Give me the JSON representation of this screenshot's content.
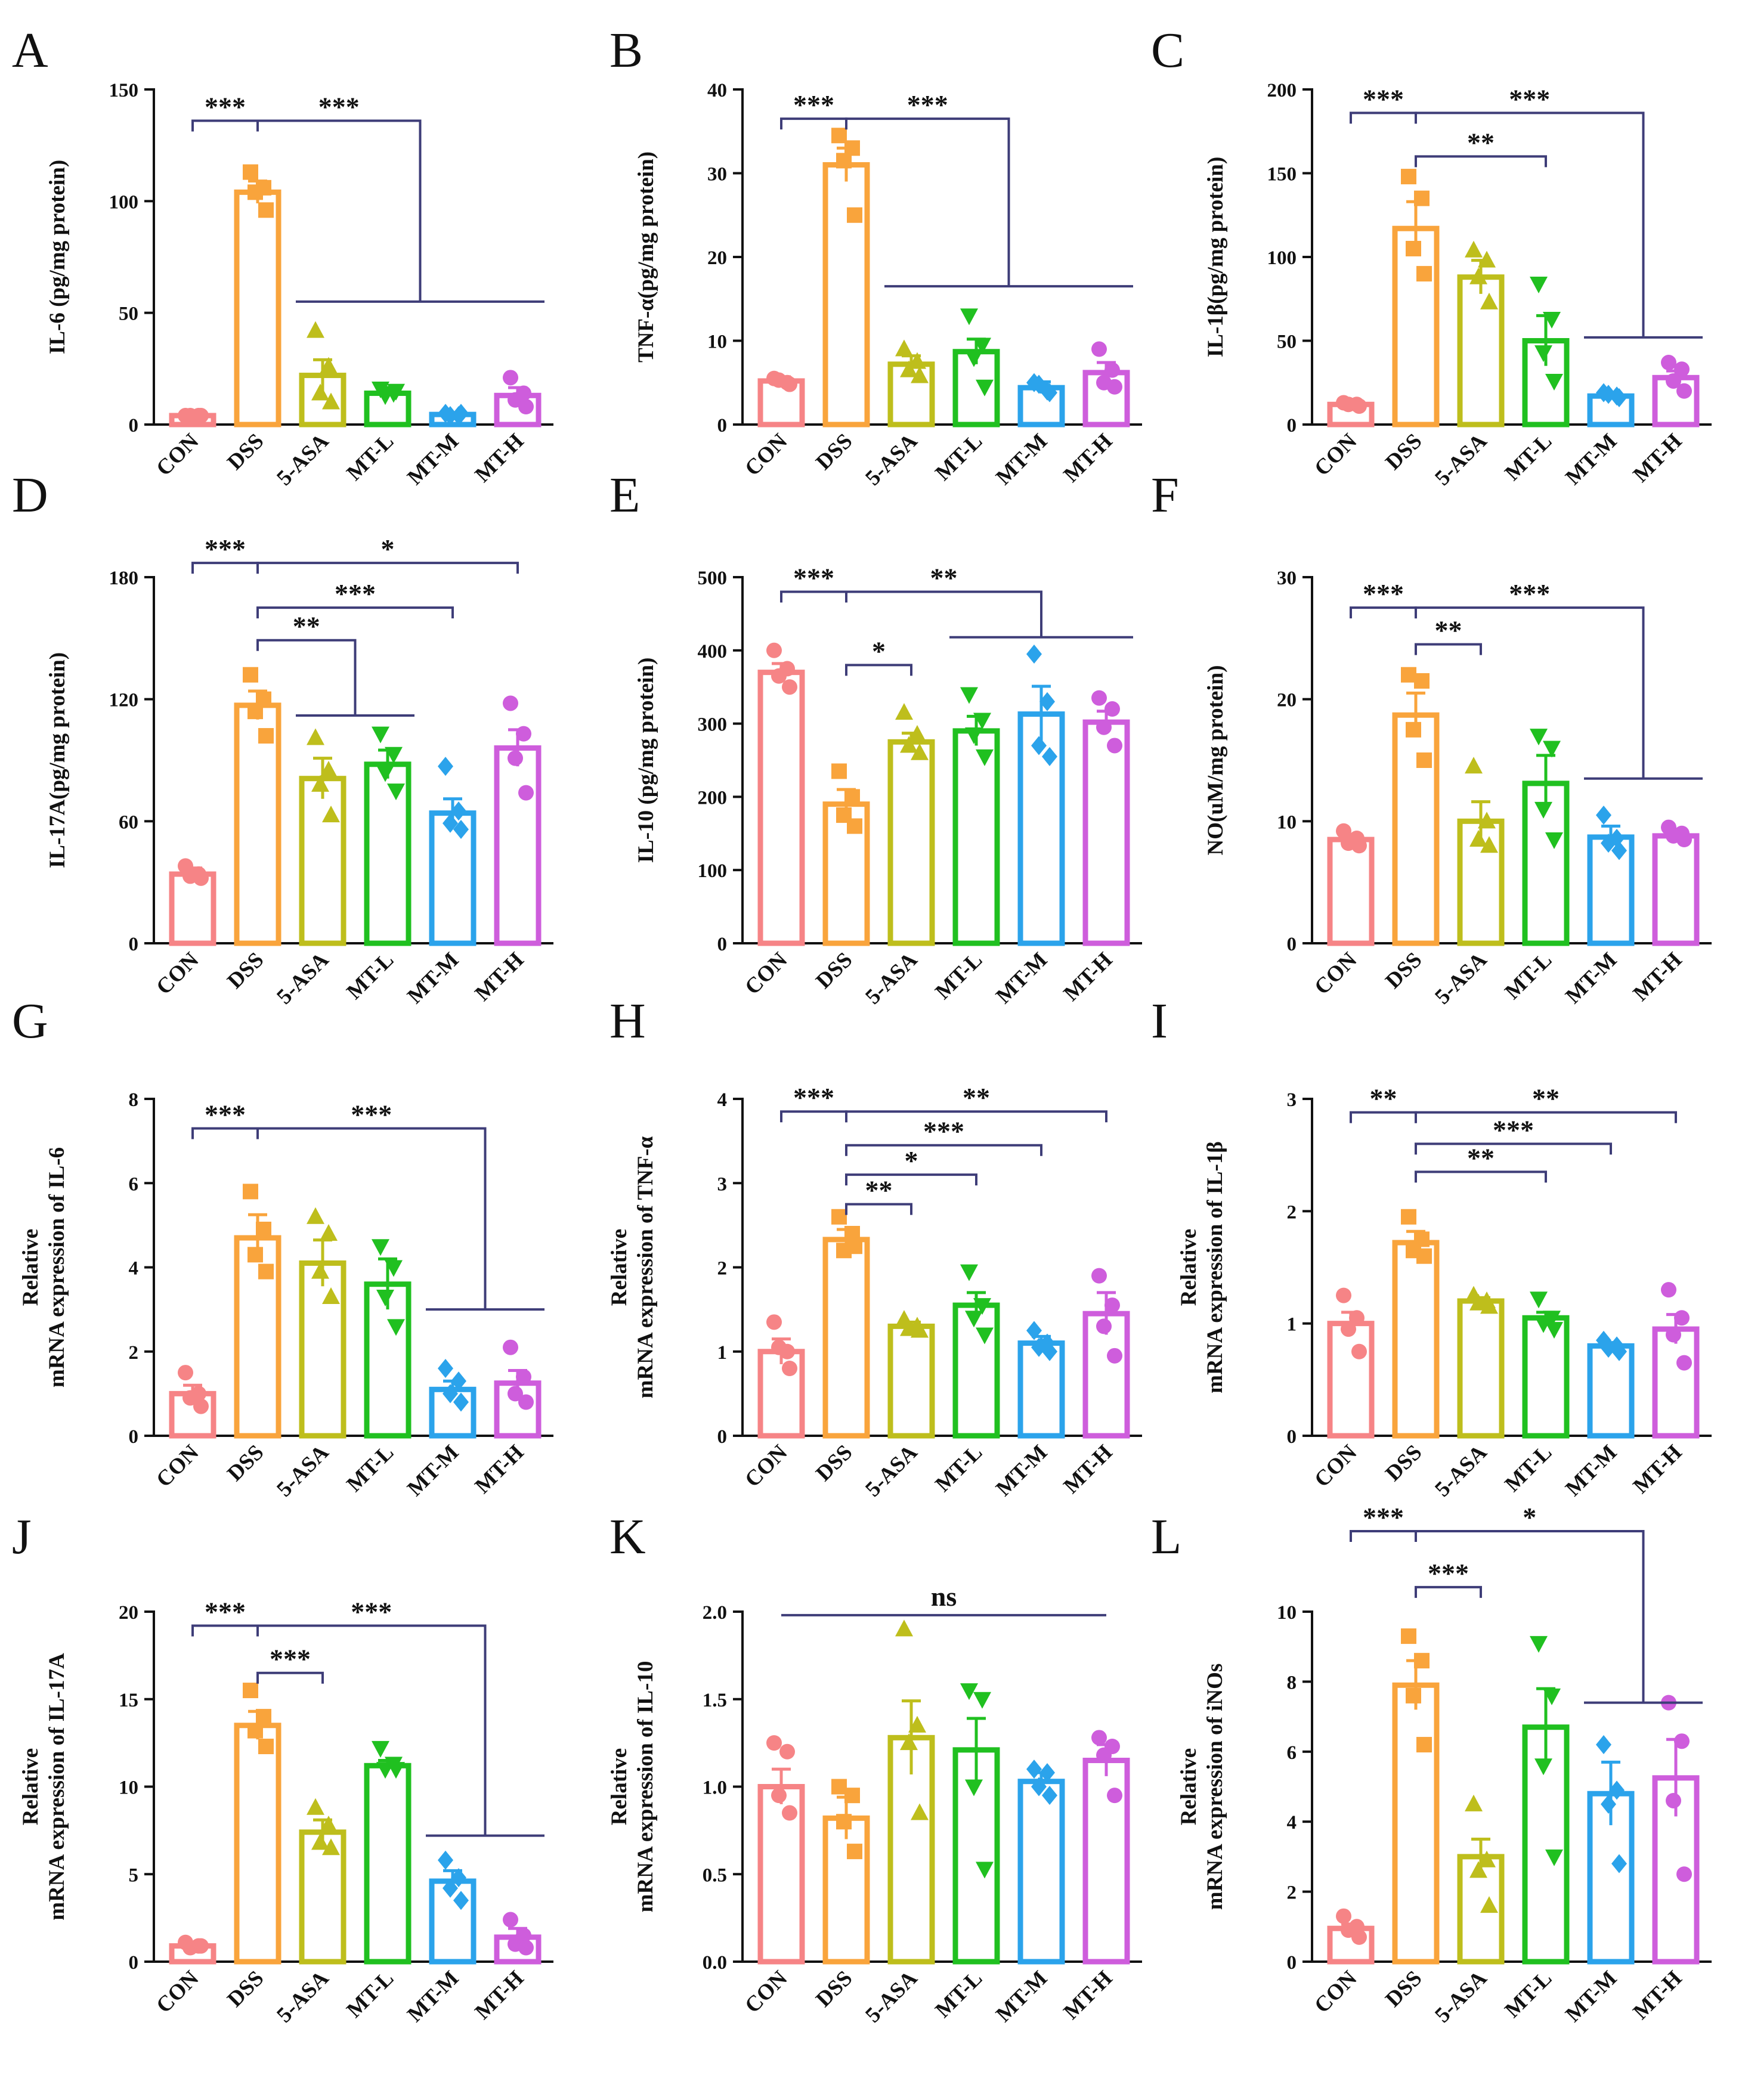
{
  "figure": {
    "categories": [
      "CON",
      "DSS",
      "5-ASA",
      "MT-L",
      "MT-M",
      "MT-H"
    ],
    "group_colors": {
      "CON": "#F68486",
      "DSS": "#F9A43C",
      "5-ASA": "#BEBE1C",
      "MT-L": "#20C020",
      "MT-M": "#2BA3EB",
      "MT-H": "#CE5DDC"
    },
    "marker_shapes": [
      "circle",
      "square",
      "triangle-up",
      "triangle-down",
      "diamond",
      "circle"
    ],
    "axis_color": "#111111",
    "bracket_color": "#3E3D78"
  },
  "chart_data": [
    {
      "panel": "A",
      "type": "bar",
      "title": "",
      "ylabel": [
        "IL-6 (pg/mg protein)"
      ],
      "ylim": [
        0,
        150
      ],
      "yticks": [
        0,
        50,
        100,
        150
      ],
      "values": [
        4,
        104,
        22,
        14,
        4.5,
        13
      ],
      "sem": [
        0,
        5,
        7,
        2,
        0.5,
        3.5
      ],
      "points": [
        [
          4,
          4,
          4,
          4
        ],
        [
          113,
          106,
          104,
          96
        ],
        [
          42,
          26,
          14,
          10
        ],
        [
          16,
          14,
          13,
          15
        ],
        [
          5,
          4,
          4,
          5
        ],
        [
          21,
          14,
          11,
          8
        ]
      ],
      "comparisons": [
        {
          "label": "***",
          "from": 0,
          "to": [
            1
          ],
          "y": 136
        },
        {
          "label": "***",
          "from": 1,
          "to": [
            2,
            3,
            4,
            5
          ],
          "y": 136,
          "group_y": 55
        }
      ]
    },
    {
      "panel": "B",
      "type": "bar",
      "title": "",
      "ylabel": [
        "TNF-α(pg/mg protein)"
      ],
      "ylim": [
        0,
        40
      ],
      "yticks": [
        0,
        10,
        20,
        30,
        40
      ],
      "values": [
        5.2,
        31,
        7.2,
        8.7,
        4.4,
        6.2
      ],
      "sem": [
        0.5,
        2,
        1,
        1.5,
        0.7,
        1.2
      ],
      "points": [
        [
          5.5,
          5,
          5.3,
          4.8
        ],
        [
          34.5,
          33,
          31.5,
          25
        ],
        [
          9,
          7.5,
          6.5,
          5.8
        ],
        [
          13,
          9.5,
          8,
          4.5
        ],
        [
          5,
          4,
          4.8,
          3.8
        ],
        [
          9,
          6.5,
          5,
          4.5
        ]
      ],
      "comparisons": [
        {
          "label": "***",
          "from": 0,
          "to": [
            1
          ],
          "y": 36.5
        },
        {
          "label": "***",
          "from": 1,
          "to": [
            2,
            3,
            4,
            5
          ],
          "y": 36.5,
          "group_y": 16.5
        }
      ]
    },
    {
      "panel": "C",
      "type": "bar",
      "title": "",
      "ylabel": [
        "IL-1β(pg/mg protein)"
      ],
      "ylim": [
        0,
        200
      ],
      "yticks": [
        0,
        50,
        100,
        150,
        200
      ],
      "values": [
        12,
        117,
        88,
        50,
        17,
        28
      ],
      "sem": [
        1,
        16,
        10,
        15,
        1.5,
        4
      ],
      "points": [
        [
          13,
          12,
          12,
          11
        ],
        [
          148,
          135,
          105,
          90
        ],
        [
          104,
          98,
          88,
          73
        ],
        [
          84,
          63,
          43,
          26
        ],
        [
          19,
          17,
          18,
          16
        ],
        [
          37,
          33,
          26,
          20
        ]
      ],
      "comparisons": [
        {
          "label": "***",
          "from": 0,
          "to": [
            1
          ],
          "y": 186
        },
        {
          "label": "**",
          "from": 1,
          "to": [
            3
          ],
          "y": 160
        },
        {
          "label": "***",
          "from": 1,
          "to": [
            4,
            5
          ],
          "y": 186,
          "group_y": 52
        }
      ]
    },
    {
      "panel": "D",
      "type": "bar",
      "title": "",
      "ylabel": [
        "IL-17A(pg/mg protein)"
      ],
      "ylim": [
        0,
        180
      ],
      "yticks": [
        0,
        60,
        120,
        180
      ],
      "values": [
        34,
        117,
        81,
        88,
        64,
        96
      ],
      "sem": [
        3,
        7,
        10,
        7,
        7,
        9
      ],
      "points": [
        [
          38,
          34,
          33,
          32
        ],
        [
          132,
          120,
          114,
          102
        ],
        [
          101,
          85,
          78,
          63
        ],
        [
          103,
          93,
          84,
          75
        ],
        [
          87,
          65,
          59,
          56
        ],
        [
          118,
          103,
          91,
          74
        ]
      ],
      "comparisons": [
        {
          "label": "***",
          "from": 0,
          "to": [
            1
          ],
          "y": 187
        },
        {
          "label": "*",
          "from": 1,
          "to": [
            5
          ],
          "y": 187
        },
        {
          "label": "***",
          "from": 1,
          "to": [
            4
          ],
          "y": 165
        },
        {
          "label": "**",
          "from": 1,
          "to": [
            2,
            3
          ],
          "y": 149,
          "group_y": 112
        }
      ]
    },
    {
      "panel": "E",
      "type": "bar",
      "title": "",
      "ylabel": [
        "IL-10 (pg/mg protein)"
      ],
      "ylim": [
        0,
        500
      ],
      "yticks": [
        0,
        100,
        200,
        300,
        400,
        500
      ],
      "values": [
        370,
        190,
        275,
        290,
        313,
        302
      ],
      "sem": [
        12,
        20,
        12,
        20,
        38,
        15
      ],
      "points": [
        [
          400,
          375,
          365,
          350
        ],
        [
          235,
          200,
          175,
          160
        ],
        [
          315,
          285,
          270,
          260
        ],
        [
          340,
          305,
          285,
          255
        ],
        [
          395,
          330,
          270,
          255
        ],
        [
          335,
          320,
          295,
          270
        ]
      ],
      "comparisons": [
        {
          "label": "***",
          "from": 0,
          "to": [
            1
          ],
          "y": 480
        },
        {
          "label": "*",
          "from": 1,
          "to": [
            2
          ],
          "y": 380
        },
        {
          "label": "**",
          "from": 1,
          "to": [
            3,
            4,
            5
          ],
          "y": 480,
          "group_y": 418
        }
      ]
    },
    {
      "panel": "F",
      "type": "bar",
      "title": "",
      "ylabel": [
        "NO(uM/mg protein)"
      ],
      "ylim": [
        0,
        30
      ],
      "yticks": [
        0,
        10,
        20,
        30
      ],
      "values": [
        8.5,
        18.7,
        10,
        13.1,
        8.7,
        8.8
      ],
      "sem": [
        0.3,
        1.8,
        1.6,
        2.3,
        0.9,
        0.5
      ],
      "points": [
        [
          9.2,
          8.6,
          8.2,
          8
        ],
        [
          22,
          21.5,
          17.5,
          15
        ],
        [
          14.5,
          10,
          8.5,
          8
        ],
        [
          17,
          16,
          11,
          8.5
        ],
        [
          10.5,
          8.6,
          8.2,
          7.6
        ],
        [
          9.5,
          9,
          8.8,
          8.5
        ]
      ],
      "comparisons": [
        {
          "label": "***",
          "from": 0,
          "to": [
            1
          ],
          "y": 27.5
        },
        {
          "label": "**",
          "from": 1,
          "to": [
            2
          ],
          "y": 24.5
        },
        {
          "label": "***",
          "from": 1,
          "to": [
            4,
            5
          ],
          "y": 27.5,
          "group_y": 13.5
        }
      ]
    },
    {
      "panel": "G",
      "type": "bar",
      "title": "",
      "ylabel": [
        "Relative",
        "mRNA expression of IL-6"
      ],
      "ylim": [
        0,
        8
      ],
      "yticks": [
        0,
        2,
        4,
        6,
        8
      ],
      "values": [
        1,
        4.7,
        4.1,
        3.6,
        1.1,
        1.25
      ],
      "sem": [
        0.2,
        0.55,
        0.55,
        0.6,
        0.2,
        0.3
      ],
      "points": [
        [
          1.5,
          1,
          0.9,
          0.7
        ],
        [
          5.8,
          4.9,
          4.3,
          3.9
        ],
        [
          5.2,
          4.8,
          3.9,
          3.3
        ],
        [
          4.5,
          4,
          3.3,
          2.6
        ],
        [
          1.6,
          1.3,
          1,
          0.8
        ],
        [
          2.1,
          1.4,
          1,
          0.8
        ]
      ],
      "comparisons": [
        {
          "label": "***",
          "from": 0,
          "to": [
            1
          ],
          "y": 7.3
        },
        {
          "label": "***",
          "from": 1,
          "to": [
            4,
            5
          ],
          "y": 7.3,
          "group_y": 3
        }
      ]
    },
    {
      "panel": "H",
      "type": "bar",
      "title": "",
      "ylabel": [
        "Relative",
        "mRNA expression of TNF-α"
      ],
      "ylim": [
        0,
        4
      ],
      "yticks": [
        0,
        1,
        2,
        3,
        4
      ],
      "values": [
        1,
        2.33,
        1.3,
        1.55,
        1.1,
        1.45
      ],
      "sem": [
        0.15,
        0.12,
        0.05,
        0.15,
        0.08,
        0.25
      ],
      "points": [
        [
          1.35,
          1,
          1.05,
          0.8
        ],
        [
          2.6,
          2.4,
          2.2,
          2.25
        ],
        [
          1.38,
          1.3,
          1.27,
          1.25
        ],
        [
          1.95,
          1.55,
          1.4,
          1.2
        ],
        [
          1.25,
          1.1,
          1.05,
          1
        ],
        [
          1.9,
          1.55,
          1.3,
          0.95
        ]
      ],
      "comparisons": [
        {
          "label": "***",
          "from": 0,
          "to": [
            1
          ],
          "y": 3.85
        },
        {
          "label": "**",
          "from": 1,
          "to": [
            5
          ],
          "y": 3.85
        },
        {
          "label": "***",
          "from": 1,
          "to": [
            4
          ],
          "y": 3.45
        },
        {
          "label": "*",
          "from": 1,
          "to": [
            3
          ],
          "y": 3.1
        },
        {
          "label": "**",
          "from": 1,
          "to": [
            2
          ],
          "y": 2.75
        }
      ]
    },
    {
      "panel": "I",
      "type": "bar",
      "title": "",
      "ylabel": [
        "Relative",
        "mRNA expression of IL-1β"
      ],
      "ylim": [
        0,
        3
      ],
      "yticks": [
        0,
        1,
        2,
        3
      ],
      "values": [
        1,
        1.72,
        1.2,
        1.05,
        0.8,
        0.95
      ],
      "sem": [
        0.1,
        0.1,
        0.03,
        0.05,
        0.03,
        0.13
      ],
      "points": [
        [
          1.25,
          1.05,
          0.95,
          0.75
        ],
        [
          1.95,
          1.75,
          1.65,
          1.6
        ],
        [
          1.25,
          1.2,
          1.18,
          1.15
        ],
        [
          1.22,
          1.05,
          1,
          0.95
        ],
        [
          0.85,
          0.8,
          0.78,
          0.75
        ],
        [
          1.3,
          1.05,
          0.9,
          0.65
        ]
      ],
      "comparisons": [
        {
          "label": "**",
          "from": 0,
          "to": [
            1
          ],
          "y": 2.88
        },
        {
          "label": "**",
          "from": 1,
          "to": [
            5
          ],
          "y": 2.88
        },
        {
          "label": "***",
          "from": 1,
          "to": [
            4
          ],
          "y": 2.6
        },
        {
          "label": "**",
          "from": 1,
          "to": [
            3
          ],
          "y": 2.35
        }
      ]
    },
    {
      "panel": "J",
      "type": "bar",
      "title": "",
      "ylabel": [
        "Relative",
        "mRNA expression of IL-17A"
      ],
      "ylim": [
        0,
        20
      ],
      "yticks": [
        0,
        5,
        10,
        15,
        20
      ],
      "values": [
        0.9,
        13.5,
        7.4,
        11.2,
        4.6,
        1.4
      ],
      "sem": [
        0.1,
        0.8,
        0.7,
        0.3,
        0.6,
        0.5
      ],
      "points": [
        [
          1.1,
          0.9,
          0.8,
          0.9
        ],
        [
          15.5,
          14,
          13.2,
          12.3
        ],
        [
          8.8,
          7.8,
          6.8,
          6.5
        ],
        [
          12.2,
          11.3,
          11,
          11
        ],
        [
          5.8,
          4.8,
          4.2,
          3.5
        ],
        [
          2.4,
          1.5,
          1,
          0.8
        ]
      ],
      "comparisons": [
        {
          "label": "***",
          "from": 0,
          "to": [
            1
          ],
          "y": 19.2
        },
        {
          "label": "***",
          "from": 1,
          "to": [
            2
          ],
          "y": 16.5
        },
        {
          "label": "***",
          "from": 1,
          "to": [
            4,
            5
          ],
          "y": 19.2,
          "group_y": 7.2
        }
      ]
    },
    {
      "panel": "K",
      "type": "bar",
      "title": "",
      "ylabel": [
        "Relative",
        "mRNA expression of IL-10"
      ],
      "ylim": [
        0,
        2.0
      ],
      "yticks": [
        0.0,
        0.5,
        1.0,
        1.5,
        2.0
      ],
      "tick_labels": [
        "0.0",
        "0.5",
        "1.0",
        "1.5",
        "2.0"
      ],
      "values": [
        1,
        0.82,
        1.28,
        1.21,
        1.03,
        1.15
      ],
      "sem": [
        0.1,
        0.12,
        0.21,
        0.18,
        0.05,
        0.09
      ],
      "points": [
        [
          1.25,
          1.2,
          0.95,
          0.85
        ],
        [
          1,
          0.95,
          0.8,
          0.63
        ],
        [
          1.9,
          1.35,
          1.25,
          0.85
        ],
        [
          1.55,
          1.5,
          1,
          0.53
        ],
        [
          1.1,
          1.08,
          1,
          0.95
        ],
        [
          1.28,
          1.23,
          1.18,
          0.95
        ]
      ],
      "comparisons": [
        {
          "label": "ns",
          "from": 0,
          "to": [
            5
          ],
          "y": 1.98,
          "flat": true
        }
      ]
    },
    {
      "panel": "L",
      "type": "bar",
      "title": "",
      "ylabel": [
        "Relative",
        "mRNA expression of iNOs"
      ],
      "ylim": [
        0,
        10
      ],
      "yticks": [
        0,
        2,
        4,
        6,
        8,
        10
      ],
      "values": [
        0.95,
        7.9,
        3.0,
        6.7,
        4.8,
        5.25
      ],
      "sem": [
        0.12,
        0.7,
        0.5,
        1.1,
        0.9,
        1.1
      ],
      "points": [
        [
          1.3,
          1,
          0.9,
          0.7
        ],
        [
          9.3,
          8.6,
          7.6,
          6.2
        ],
        [
          4.5,
          2.9,
          2.6,
          1.6
        ],
        [
          9.1,
          7.6,
          5.6,
          3
        ],
        [
          6.2,
          4.9,
          4.5,
          2.8
        ],
        [
          7.4,
          6.3,
          4.6,
          2.5
        ]
      ],
      "comparisons": [
        {
          "label": "***",
          "from": 0,
          "to": [
            1
          ],
          "y": 12.3
        },
        {
          "label": "***",
          "from": 1,
          "to": [
            2
          ],
          "y": 10.7
        },
        {
          "label": "*",
          "from": 1,
          "to": [
            4,
            5
          ],
          "y": 12.3,
          "group_y": 7.4
        }
      ]
    }
  ]
}
